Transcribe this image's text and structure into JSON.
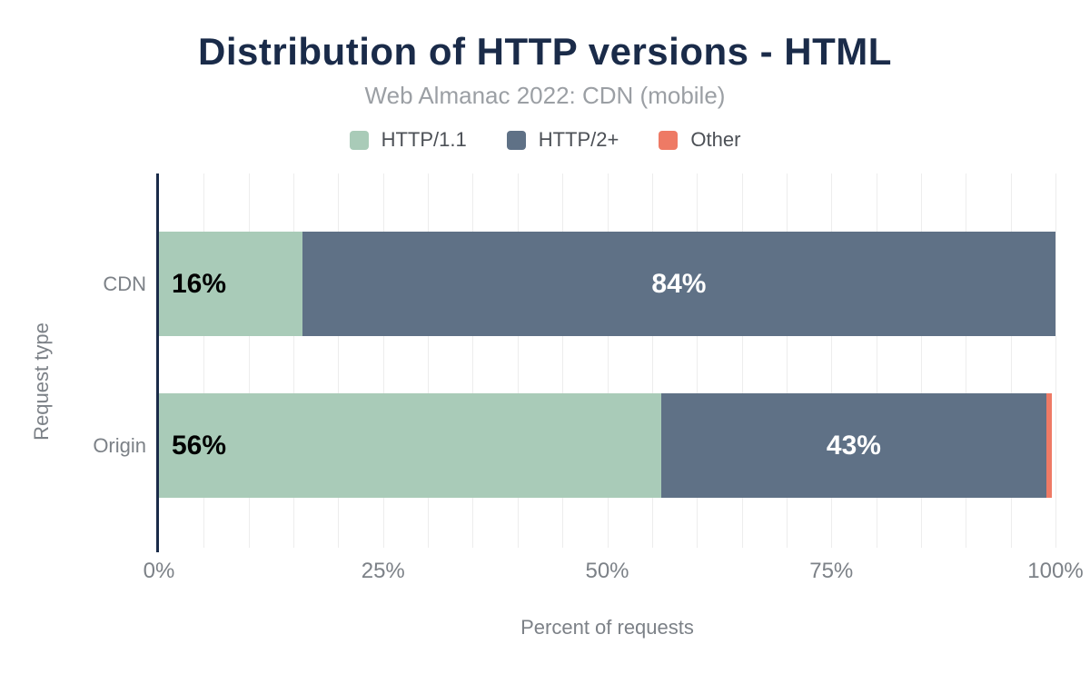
{
  "title": "Distribution of HTTP versions - HTML",
  "subtitle": "Web Almanac 2022: CDN (mobile)",
  "legend": [
    {
      "label": "HTTP/1.1",
      "color": "#a9cbb8"
    },
    {
      "label": "HTTP/2+",
      "color": "#5f7186"
    },
    {
      "label": "Other",
      "color": "#ee7a65"
    }
  ],
  "chart_data": {
    "type": "bar",
    "orientation": "horizontal",
    "stacked": true,
    "title": "Distribution of HTTP versions - HTML",
    "subtitle": "Web Almanac 2022: CDN (mobile)",
    "categories": [
      "CDN",
      "Origin"
    ],
    "series": [
      {
        "name": "HTTP/1.1",
        "color": "#a9cbb8",
        "values": [
          16,
          56
        ]
      },
      {
        "name": "HTTP/2+",
        "color": "#5f7186",
        "values": [
          84,
          43
        ]
      },
      {
        "name": "Other",
        "color": "#ee7a65",
        "values": [
          0,
          0.6
        ]
      }
    ],
    "bar_labels": [
      [
        "16%",
        "84%",
        ""
      ],
      [
        "56%",
        "43%",
        ""
      ]
    ],
    "xlabel": "Percent of requests",
    "ylabel": "Request type",
    "x_ticks": [
      "0%",
      "25%",
      "50%",
      "75%",
      "100%"
    ],
    "x_tick_positions": [
      0,
      25,
      50,
      75,
      100
    ],
    "xlim": [
      0,
      100
    ],
    "grid": "vertical, minor lines every 5%",
    "legend_position": "top"
  },
  "colors": {
    "title": "#1a2b49",
    "subtitle": "#9b9fa4",
    "axis_line": "#1a2b49",
    "axis_text": "#7c8187",
    "gridline": "#ededed",
    "label_on_light": "#000000",
    "label_on_dark": "#ffffff",
    "background": "#ffffff"
  }
}
